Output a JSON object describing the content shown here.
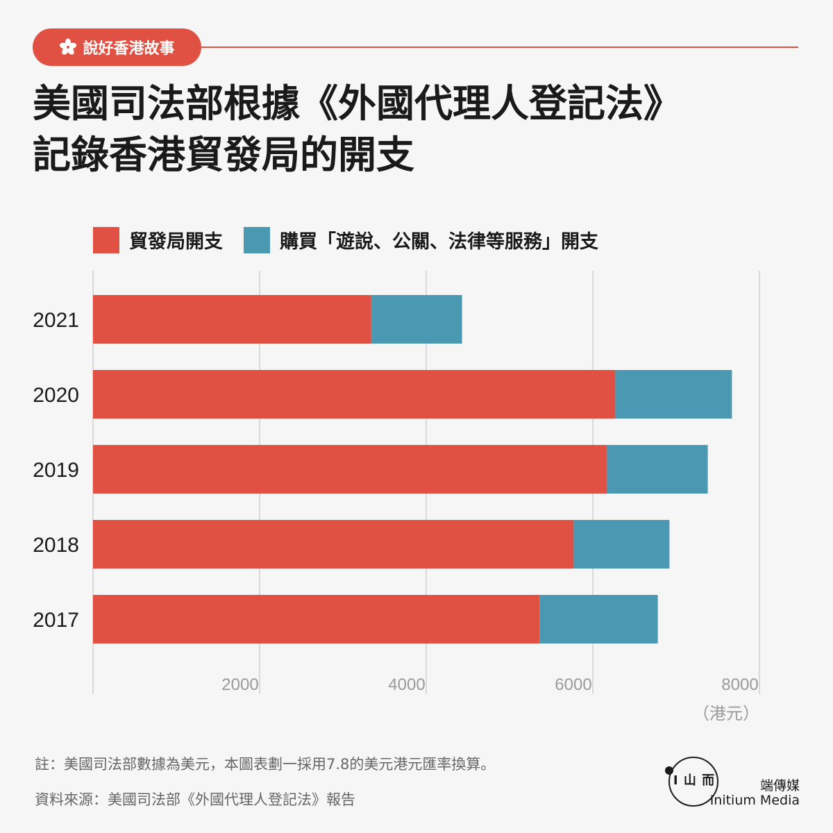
{
  "tag": {
    "label": "說好香港故事",
    "icon": "bauhinia-flower-icon"
  },
  "title": {
    "line1": "美國司法部根據《外國代理人登記法》",
    "line2": "記錄香港貿發局的開支"
  },
  "colors": {
    "accent": "#e05043",
    "teal": "#4a98b2",
    "grid": "#d9d9d9",
    "tick": "#9a9a9a"
  },
  "chart_data": {
    "type": "bar",
    "orientation": "horizontal",
    "stacked": true,
    "categories": [
      "2021",
      "2020",
      "2019",
      "2018",
      "2017"
    ],
    "series": [
      {
        "name": "貿發局開支",
        "color": "#e05043",
        "values": [
          3340,
          6270,
          6170,
          5770,
          5360
        ]
      },
      {
        "name": "購買「遊說、公關、法律等服務」開支",
        "color": "#4a98b2",
        "values": [
          1090,
          1400,
          1210,
          1150,
          1420
        ]
      }
    ],
    "xticks": [
      "2000",
      "4000",
      "6000",
      "8000"
    ],
    "xlim": [
      0,
      8000
    ],
    "unit": "（港元）",
    "grid": true,
    "legend": "top-left"
  },
  "footer": {
    "note": "註：美國司法部數據為美元，本圖表劃一採用7.8的美元港元匯率換算。",
    "source": "資料來源：美國司法部《外國代理人登記法》報告",
    "brand_cn": "端傳媒",
    "brand_en": "Initium Media",
    "logo_mark": "I 山 而"
  }
}
